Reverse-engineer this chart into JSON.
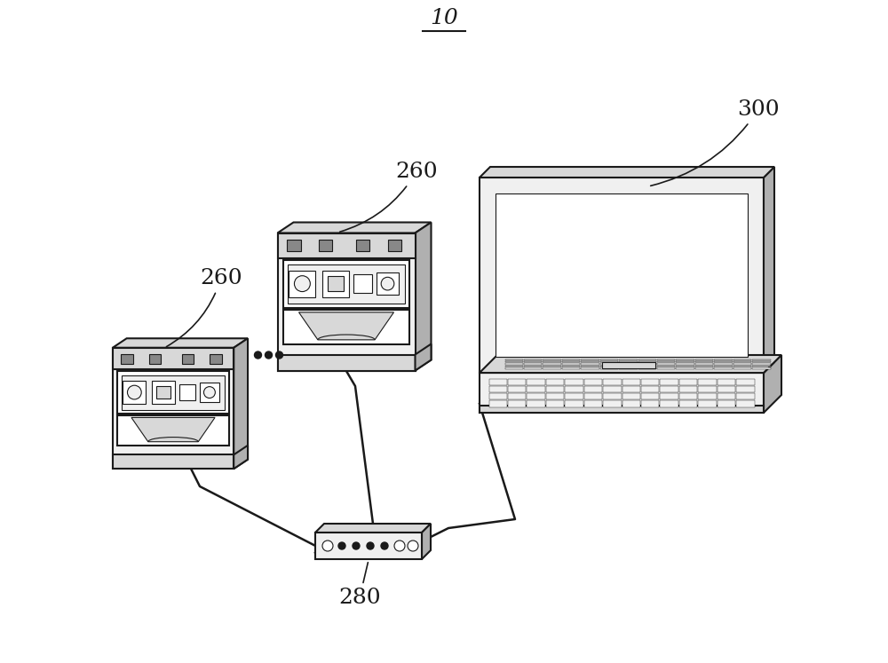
{
  "background_color": "#ffffff",
  "line_color": "#1a1a1a",
  "lw": 1.5,
  "fill_white": "#ffffff",
  "fill_light": "#f0f0f0",
  "fill_medium": "#d8d8d8",
  "fill_dark": "#b0b0b0",
  "fill_darker": "#888888",
  "label_10": "10",
  "label_260": "260",
  "label_300": "300",
  "label_280": "280"
}
